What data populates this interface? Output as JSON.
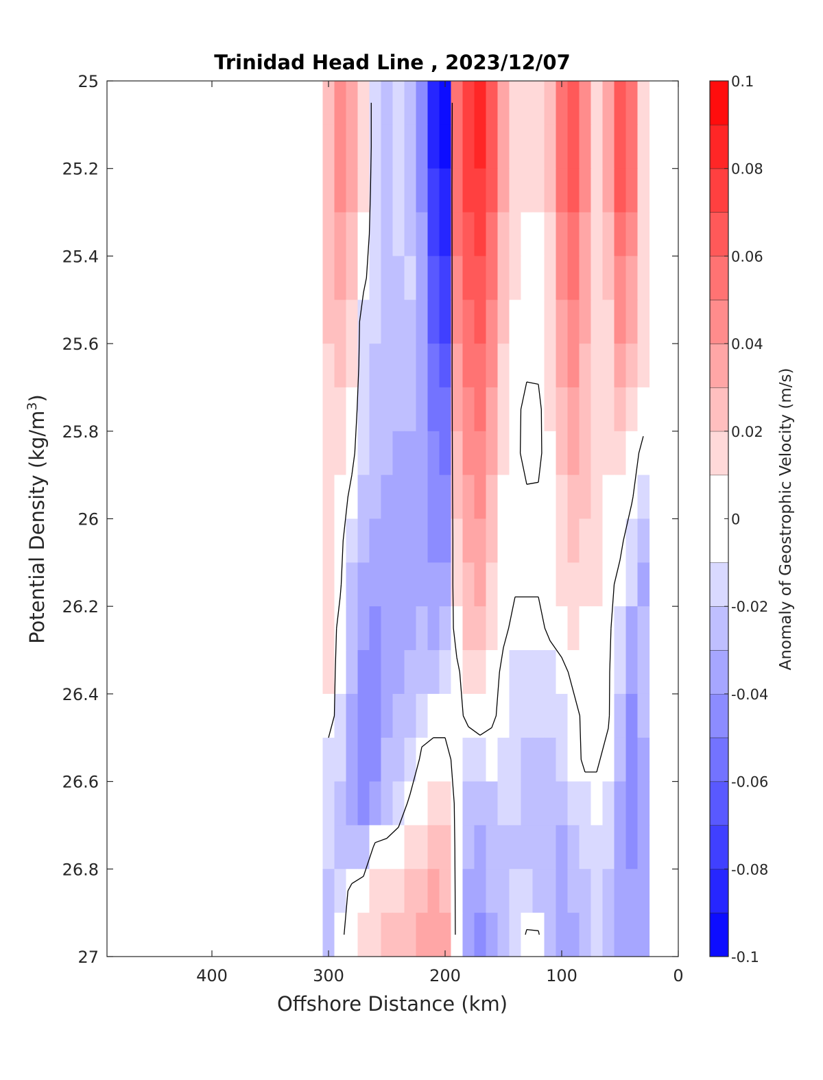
{
  "chart_data": {
    "type": "heatmap",
    "title": "Trinidad Head Line , 2023/12/07",
    "xlabel": "Offshore Distance (km)",
    "ylabel_main": "Potential Density (kg/m",
    "ylabel_sup": "3",
    "ylabel_close": ")",
    "colorbar_label": "Anomaly of Geostrophic Velocity (m/s)",
    "xlim": [
      490,
      0
    ],
    "ylim": [
      25,
      27
    ],
    "x_reversed": true,
    "y_reversed": true,
    "x_ticks": [
      400,
      300,
      200,
      100,
      0
    ],
    "x_tick_labels": [
      "400",
      "300",
      "200",
      "100",
      "0"
    ],
    "y_ticks": [
      25,
      25.2,
      25.4,
      25.6,
      25.8,
      26,
      26.2,
      26.4,
      26.6,
      26.8,
      27
    ],
    "y_tick_labels": [
      "25",
      "25.2",
      "25.4",
      "25.6",
      "25.8",
      "26",
      "26.2",
      "26.4",
      "26.6",
      "26.8",
      "27"
    ],
    "colorbar_range": [
      -0.1,
      0.1
    ],
    "colorbar_ticks": [
      0.1,
      0.08,
      0.06,
      0.04,
      0.02,
      0,
      -0.02,
      -0.04,
      -0.06,
      -0.08,
      -0.1
    ],
    "colorbar_tick_labels": [
      "0.1",
      "0.08",
      "0.06",
      "0.04",
      "0.02",
      "0",
      "-0.02",
      "-0.04",
      "-0.06",
      "-0.08",
      "-0.1"
    ],
    "levels": [
      -0.1,
      -0.09,
      -0.08,
      -0.07,
      -0.06,
      -0.05,
      -0.04,
      -0.03,
      -0.02,
      -0.01,
      0.01,
      0.02,
      0.03,
      0.04,
      0.05,
      0.06,
      0.07,
      0.08,
      0.09,
      0.1
    ],
    "colormap": {
      "negative": "#0000ff",
      "zero": "#ffffff",
      "positive": "#ff0000"
    },
    "zero_contour_color": "#000000",
    "x": [
      300,
      290,
      280,
      270,
      260,
      250,
      240,
      230,
      220,
      210,
      200,
      190,
      180,
      170,
      160,
      150,
      140,
      130,
      120,
      110,
      100,
      90,
      80,
      70,
      60,
      50,
      40,
      30
    ],
    "y": [
      25,
      25.1,
      25.2,
      25.3,
      25.4,
      25.5,
      25.6,
      25.7,
      25.8,
      25.9,
      26,
      26.1,
      26.2,
      26.3,
      26.4,
      26.5,
      26.6,
      26.7,
      26.8,
      26.9
    ],
    "z": [
      [
        0.03,
        0.05,
        0.04,
        0.02,
        -0.01,
        -0.02,
        -0.01,
        -0.02,
        -0.04,
        -0.085,
        -0.095,
        0.06,
        0.08,
        0.085,
        0.07,
        0.04,
        0.02,
        0.015,
        0.015,
        0.03,
        0.06,
        0.07,
        0.05,
        0.02,
        0.04,
        0.07,
        0.06,
        0.02
      ],
      [
        0.03,
        0.05,
        0.04,
        0.02,
        -0.01,
        -0.02,
        -0.01,
        -0.02,
        -0.04,
        -0.08,
        -0.09,
        0.06,
        0.08,
        0.085,
        0.07,
        0.04,
        0.02,
        0.015,
        0.015,
        0.03,
        0.06,
        0.07,
        0.05,
        0.02,
        0.04,
        0.07,
        0.06,
        0.02
      ],
      [
        0.03,
        0.045,
        0.035,
        0.015,
        -0.01,
        -0.02,
        -0.015,
        -0.02,
        -0.04,
        -0.075,
        -0.085,
        0.06,
        0.075,
        0.08,
        0.065,
        0.035,
        0.018,
        0.012,
        0.012,
        0.025,
        0.055,
        0.065,
        0.045,
        0.02,
        0.035,
        0.065,
        0.055,
        0.02
      ],
      [
        0.03,
        0.04,
        0.03,
        0.01,
        -0.01,
        -0.02,
        -0.015,
        -0.02,
        -0.035,
        -0.07,
        -0.08,
        0.055,
        0.07,
        0.075,
        0.06,
        0.03,
        0.015,
        0.008,
        0.008,
        0.02,
        0.05,
        0.06,
        0.04,
        0.02,
        0.03,
        0.06,
        0.05,
        0.02
      ],
      [
        0.03,
        0.035,
        0.025,
        0.005,
        -0.015,
        -0.02,
        -0.02,
        -0.015,
        -0.03,
        -0.065,
        -0.075,
        0.05,
        0.065,
        0.07,
        0.055,
        0.025,
        0.012,
        0.005,
        0.005,
        0.018,
        0.045,
        0.055,
        0.04,
        0.02,
        0.025,
        0.05,
        0.04,
        0.02
      ],
      [
        0.025,
        0.03,
        0.02,
        -0.01,
        -0.015,
        -0.02,
        -0.02,
        -0.02,
        -0.03,
        -0.06,
        -0.07,
        0.045,
        0.06,
        0.065,
        0.05,
        0.022,
        0.01,
        0.004,
        0.004,
        0.016,
        0.04,
        0.05,
        0.035,
        0.02,
        0.02,
        0.045,
        0.035,
        0.015
      ],
      [
        0.02,
        0.025,
        0.015,
        -0.01,
        -0.02,
        -0.02,
        -0.02,
        -0.02,
        -0.03,
        -0.055,
        -0.06,
        0.04,
        0.055,
        0.06,
        0.045,
        0.018,
        0.008,
        0.003,
        0.003,
        0.014,
        0.035,
        0.045,
        0.03,
        0.02,
        0.018,
        0.035,
        0.025,
        0.012
      ],
      [
        0.015,
        0.02,
        0.01,
        -0.012,
        -0.02,
        -0.025,
        -0.025,
        -0.025,
        -0.035,
        -0.05,
        -0.055,
        0.035,
        0.05,
        0.055,
        0.04,
        0.015,
        0.005,
        -0.005,
        -0.004,
        0.012,
        0.03,
        0.04,
        0.03,
        0.02,
        0.015,
        0.025,
        0.015,
        0.008
      ],
      [
        0.015,
        0.015,
        0.005,
        -0.015,
        -0.02,
        -0.025,
        -0.03,
        -0.03,
        -0.035,
        -0.045,
        -0.05,
        0.03,
        0.045,
        0.05,
        0.035,
        0.012,
        0.004,
        -0.005,
        -0.004,
        0.01,
        0.025,
        0.035,
        0.025,
        0.018,
        0.012,
        0.015,
        0.008,
        -0.005
      ],
      [
        0.012,
        0.01,
        -0.005,
        -0.02,
        -0.025,
        -0.03,
        -0.03,
        -0.035,
        -0.035,
        -0.04,
        -0.045,
        0.025,
        0.04,
        0.045,
        0.03,
        0.01,
        0.003,
        0.002,
        0.002,
        0.01,
        0.02,
        0.03,
        0.022,
        0.016,
        0.01,
        0.008,
        0.002,
        -0.015
      ],
      [
        0.012,
        0.005,
        -0.015,
        -0.025,
        -0.03,
        -0.03,
        -0.035,
        -0.035,
        -0.035,
        -0.04,
        -0.04,
        0.02,
        0.035,
        0.04,
        0.025,
        0.008,
        0.002,
        0.002,
        0.002,
        0.008,
        0.018,
        0.025,
        0.02,
        0.015,
        0.008,
        0.004,
        -0.01,
        -0.02
      ],
      [
        0.011,
        0.002,
        -0.02,
        -0.03,
        -0.035,
        -0.03,
        -0.035,
        -0.035,
        -0.03,
        -0.035,
        -0.03,
        0.015,
        0.03,
        0.035,
        0.02,
        0.006,
        0.002,
        0.002,
        0.002,
        0.006,
        0.015,
        0.02,
        0.015,
        0.012,
        0.005,
        -0.005,
        -0.015,
        -0.03
      ],
      [
        0.011,
        -0.005,
        -0.02,
        -0.035,
        -0.04,
        -0.03,
        -0.03,
        -0.03,
        -0.025,
        -0.03,
        -0.025,
        0.01,
        0.025,
        0.03,
        0.015,
        0.004,
        -0.005,
        -0.005,
        -0.005,
        0.004,
        0.01,
        0.015,
        0.01,
        0.01,
        0.003,
        -0.01,
        -0.03,
        -0.025
      ],
      [
        0.011,
        -0.008,
        -0.025,
        -0.04,
        -0.04,
        -0.03,
        -0.03,
        -0.025,
        -0.02,
        -0.02,
        -0.015,
        -0.005,
        0.015,
        0.02,
        0.01,
        -0.005,
        -0.01,
        -0.01,
        -0.01,
        -0.01,
        -0.005,
        0.004,
        0.004,
        0.008,
        0.002,
        -0.015,
        -0.035,
        -0.02
      ],
      [
        0.01,
        -0.01,
        -0.03,
        -0.045,
        -0.04,
        -0.03,
        -0.025,
        -0.02,
        -0.01,
        -0.005,
        -0.005,
        -0.005,
        0.004,
        0.008,
        0.003,
        -0.005,
        -0.012,
        -0.015,
        -0.015,
        -0.015,
        -0.01,
        -0.005,
        0.004,
        0.004,
        0.002,
        -0.02,
        -0.04,
        -0.025
      ],
      [
        -0.01,
        -0.015,
        -0.03,
        -0.045,
        -0.04,
        -0.025,
        -0.02,
        -0.015,
        0.004,
        0.005,
        0.005,
        -0.005,
        -0.012,
        -0.01,
        -0.008,
        -0.012,
        -0.015,
        -0.02,
        -0.02,
        -0.02,
        -0.015,
        -0.008,
        0.004,
        0.002,
        -0.005,
        -0.025,
        -0.045,
        -0.03
      ],
      [
        -0.015,
        -0.02,
        -0.035,
        -0.04,
        -0.035,
        -0.02,
        -0.012,
        0.004,
        0.01,
        0.015,
        0.018,
        -0.005,
        -0.02,
        -0.025,
        -0.02,
        -0.015,
        -0.018,
        -0.02,
        -0.022,
        -0.025,
        -0.025,
        -0.018,
        -0.01,
        -0.005,
        -0.01,
        -0.03,
        -0.045,
        -0.03
      ],
      [
        -0.015,
        -0.02,
        -0.025,
        -0.02,
        0.004,
        0.005,
        0.01,
        0.015,
        0.02,
        0.025,
        0.025,
        -0.005,
        -0.025,
        -0.03,
        -0.025,
        -0.02,
        -0.02,
        -0.02,
        -0.022,
        -0.025,
        -0.03,
        -0.025,
        -0.015,
        -0.01,
        -0.015,
        -0.03,
        -0.04,
        -0.03
      ],
      [
        -0.02,
        -0.01,
        0.005,
        0.01,
        0.015,
        0.02,
        0.02,
        0.025,
        0.03,
        0.035,
        0.03,
        -0.005,
        -0.03,
        -0.035,
        -0.025,
        -0.02,
        -0.018,
        -0.015,
        -0.02,
        -0.025,
        -0.03,
        -0.025,
        -0.02,
        -0.012,
        -0.02,
        -0.03,
        -0.035,
        -0.03
      ],
      [
        -0.02,
        -0.005,
        0.01,
        0.015,
        0.02,
        0.025,
        0.025,
        0.03,
        0.035,
        0.04,
        0.035,
        -0.005,
        -0.035,
        -0.04,
        -0.03,
        -0.02,
        -0.015,
        0.002,
        0.002,
        -0.025,
        -0.035,
        -0.03,
        -0.02,
        -0.015,
        -0.02,
        -0.03,
        -0.03,
        -0.03
      ]
    ]
  }
}
